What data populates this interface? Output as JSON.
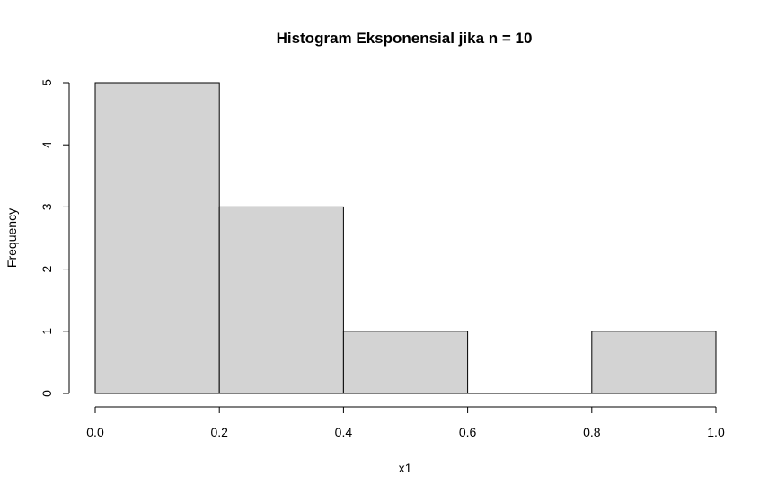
{
  "chart_data": {
    "type": "bar",
    "title": "Histogram Eksponensial jika n = 10",
    "xlabel": "x1",
    "ylabel": "Frequency",
    "bins": [
      {
        "start": 0.0,
        "end": 0.2,
        "count": 5
      },
      {
        "start": 0.2,
        "end": 0.4,
        "count": 3
      },
      {
        "start": 0.4,
        "end": 0.6,
        "count": 1
      },
      {
        "start": 0.6,
        "end": 0.8,
        "count": 0
      },
      {
        "start": 0.8,
        "end": 1.0,
        "count": 1
      }
    ],
    "xlim": [
      0.0,
      1.0
    ],
    "ylim": [
      0,
      5
    ],
    "x_ticks": [
      "0.0",
      "0.2",
      "0.4",
      "0.6",
      "0.8",
      "1.0"
    ],
    "y_ticks": [
      "0",
      "1",
      "2",
      "3",
      "4",
      "5"
    ],
    "grid": false,
    "bar_fill": "#d3d3d3",
    "bar_stroke": "#000000"
  }
}
